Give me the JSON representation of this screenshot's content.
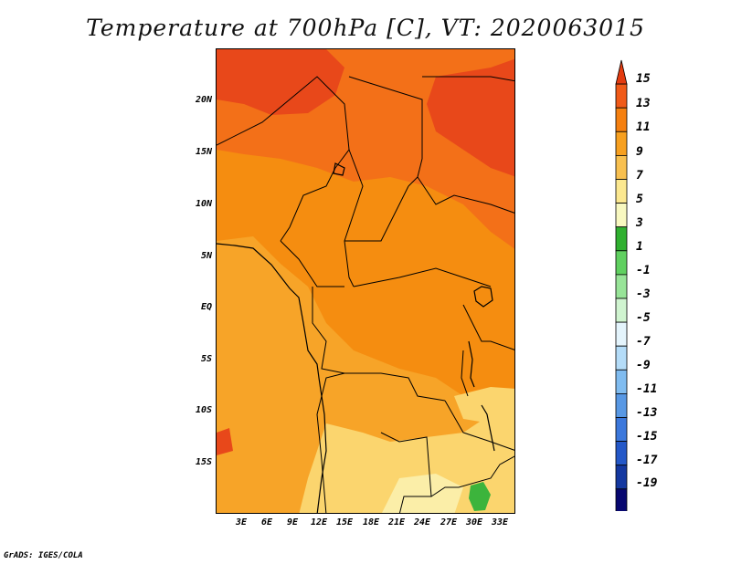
{
  "title": "Temperature at 700hPa [C], VT: 2020063015",
  "credit": "GrADS: IGES/COLA",
  "map": {
    "lat_labels": [
      "20N",
      "15N",
      "10N",
      "5N",
      "EQ",
      "5S",
      "10S",
      "15S"
    ],
    "lon_labels": [
      "3E",
      "6E",
      "9E",
      "12E",
      "15E",
      "18E",
      "21E",
      "24E",
      "27E",
      "30E",
      "33E"
    ]
  },
  "colorbar": {
    "labels": [
      "15",
      "13",
      "11",
      "9",
      "7",
      "5",
      "3",
      "1",
      "-1",
      "-3",
      "-5",
      "-7",
      "-9",
      "-11",
      "-13",
      "-15",
      "-17",
      "-19"
    ],
    "colors": [
      "#e33b10",
      "#f05a18",
      "#f58010",
      "#f7a020",
      "#f8c050",
      "#fce890",
      "#f8f8c0",
      "#30b030",
      "#60d060",
      "#98e498",
      "#d0f4d0",
      "#e4f4fc",
      "#b4dcf8",
      "#80bcf0",
      "#5898e4",
      "#3c78dc",
      "#2458c8",
      "#1438a0",
      "#080870",
      "#dcdcf4"
    ]
  }
}
